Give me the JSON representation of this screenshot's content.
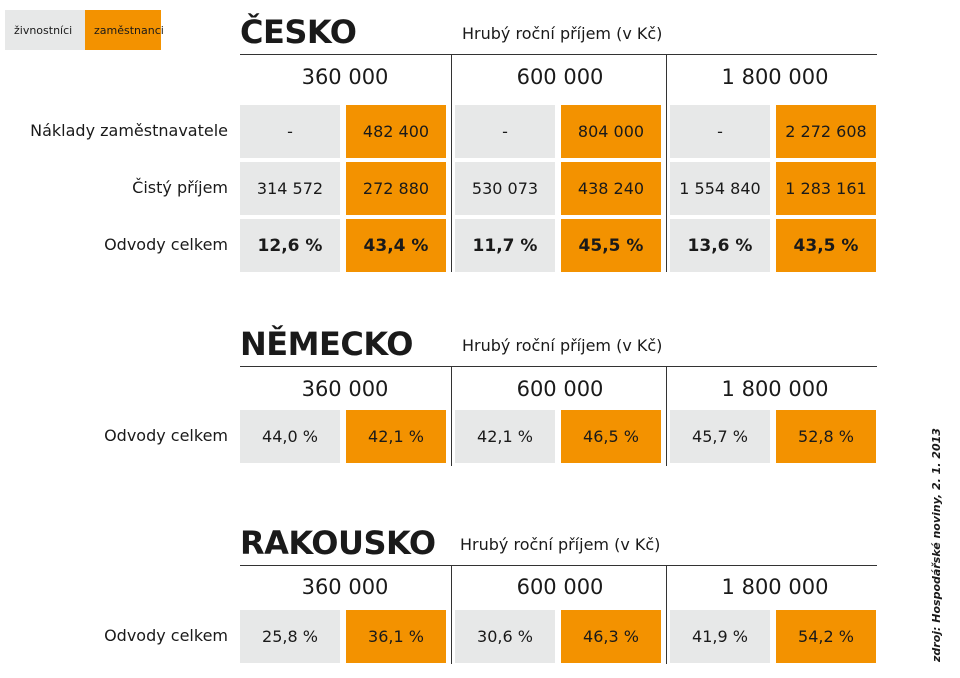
{
  "legend": {
    "grey_label": "živnostníci",
    "orange_label": "zaměstnanci"
  },
  "colors": {
    "grey": "#e7e8e8",
    "orange": "#f39200"
  },
  "source": "zdroj: Hospodářské noviny, 2. 1. 2013",
  "chart_data": [
    {
      "type": "table",
      "title": "ČESKO",
      "subtitle": "Hrubý roční příjem (v Kč)",
      "incomes": [
        "360 000",
        "600 000",
        "1 800 000"
      ],
      "series": [
        "živnostníci",
        "zaměstnanci"
      ],
      "rows": [
        {
          "label": "Náklady zaměstnavatele",
          "values": [
            [
              "-",
              "482 400"
            ],
            [
              "-",
              "804 000"
            ],
            [
              "-",
              "2 272 608"
            ]
          ]
        },
        {
          "label": "Čistý příjem",
          "values": [
            [
              "314 572",
              "272 880"
            ],
            [
              "530 073",
              "438 240"
            ],
            [
              "1 554 840",
              "1 283 161"
            ]
          ]
        },
        {
          "label": "Odvody celkem",
          "values": [
            [
              "12,6 %",
              "43,4 %"
            ],
            [
              "11,7 %",
              "45,5 %"
            ],
            [
              "13,6 %",
              "43,5 %"
            ]
          ]
        }
      ]
    },
    {
      "type": "table",
      "title": "NĚMECKO",
      "subtitle": "Hrubý roční příjem (v Kč)",
      "incomes": [
        "360 000",
        "600 000",
        "1 800 000"
      ],
      "series": [
        "živnostníci",
        "zaměstnanci"
      ],
      "rows": [
        {
          "label": "Odvody celkem",
          "values": [
            [
              "44,0 %",
              "42,1 %"
            ],
            [
              "42,1 %",
              "46,5 %"
            ],
            [
              "45,7 %",
              "52,8 %"
            ]
          ]
        }
      ]
    },
    {
      "type": "table",
      "title": "RAKOUSKO",
      "subtitle": "Hrubý roční příjem (v Kč)",
      "incomes": [
        "360 000",
        "600 000",
        "1 800 000"
      ],
      "series": [
        "živnostníci",
        "zaměstnanci"
      ],
      "rows": [
        {
          "label": "Odvody celkem",
          "values": [
            [
              "25,8 %",
              "36,1 %"
            ],
            [
              "30,6 %",
              "46,3 %"
            ],
            [
              "41,9 %",
              "54,2 %"
            ]
          ]
        }
      ]
    }
  ]
}
